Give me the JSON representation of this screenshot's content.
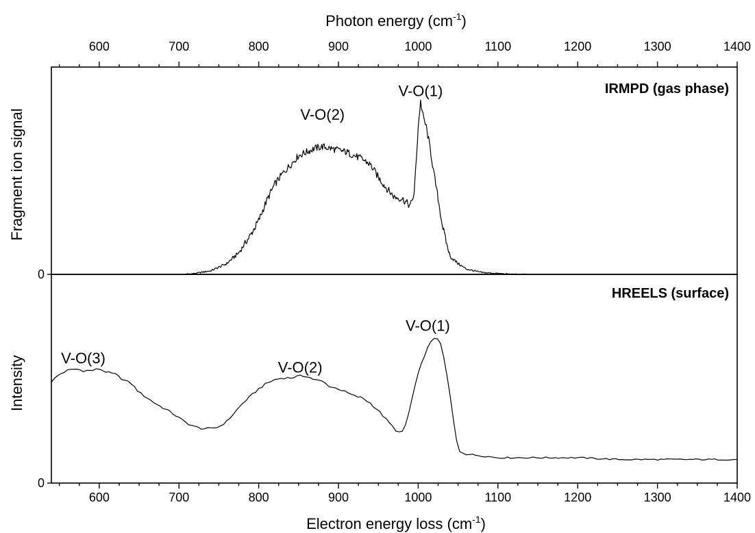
{
  "chart_data": [
    {
      "type": "line",
      "panel": "top",
      "title": "IRMPD (gas phase)",
      "xlabel": "Photon energy (cm-1)",
      "xlabel_base": "Photon energy (cm",
      "xlabel_sup": "-1",
      "xlabel_close": ")",
      "ylabel": "Fragment ion signal",
      "xlim": [
        540,
        1400
      ],
      "ylim": [
        0,
        1.0
      ],
      "x_ticks": [
        600,
        700,
        800,
        900,
        1000,
        1100,
        1200,
        1300,
        1400
      ],
      "y_tick_labels": [
        "0"
      ],
      "grid": false,
      "annotations": [
        {
          "text": "V-O(2)",
          "x": 880,
          "y": 0.86
        },
        {
          "text": "V-O(1)",
          "x": 1003,
          "y": 0.99
        }
      ],
      "series": [
        {
          "x": [
            705,
            720,
            740,
            760,
            775,
            790,
            800,
            810,
            820,
            830,
            840,
            850,
            860,
            870,
            880,
            890,
            900,
            910,
            920,
            930,
            940,
            950,
            960,
            970,
            980,
            990,
            995,
            1000,
            1003,
            1006,
            1010,
            1015,
            1020,
            1025,
            1030,
            1035,
            1040,
            1050,
            1060,
            1080,
            1100,
            1120,
            1135
          ],
          "y": [
            0.0,
            0.005,
            0.02,
            0.06,
            0.12,
            0.22,
            0.3,
            0.41,
            0.5,
            0.56,
            0.61,
            0.66,
            0.68,
            0.7,
            0.71,
            0.7,
            0.69,
            0.68,
            0.66,
            0.64,
            0.61,
            0.54,
            0.48,
            0.43,
            0.42,
            0.38,
            0.45,
            0.82,
            0.96,
            0.88,
            0.82,
            0.7,
            0.55,
            0.42,
            0.28,
            0.18,
            0.1,
            0.06,
            0.03,
            0.01,
            0.005,
            0.0,
            0.0
          ]
        }
      ]
    },
    {
      "type": "line",
      "panel": "bottom",
      "title": "HREELS (surface)",
      "xlabel": "Electron energy loss (cm-1)",
      "xlabel_base": "Electron energy loss (cm",
      "xlabel_sup": "-1",
      "xlabel_close": ")",
      "ylabel": "Intensity",
      "xlim": [
        540,
        1400
      ],
      "ylim": [
        0,
        1.0
      ],
      "x_ticks": [
        600,
        700,
        800,
        900,
        1000,
        1100,
        1200,
        1300,
        1400
      ],
      "y_tick_labels": [
        "0"
      ],
      "grid": false,
      "annotations": [
        {
          "text": "V-O(3)",
          "x": 580,
          "y": 0.66
        },
        {
          "text": "V-O(2)",
          "x": 852,
          "y": 0.61
        },
        {
          "text": "V-O(1)",
          "x": 1012,
          "y": 0.84
        }
      ],
      "series": [
        {
          "x": [
            540,
            550,
            560,
            570,
            580,
            590,
            600,
            610,
            620,
            630,
            640,
            650,
            670,
            690,
            700,
            710,
            720,
            730,
            740,
            750,
            760,
            770,
            780,
            790,
            800,
            810,
            820,
            830,
            840,
            850,
            860,
            870,
            880,
            890,
            900,
            910,
            920,
            930,
            940,
            950,
            960,
            970,
            975,
            980,
            985,
            990,
            995,
            1000,
            1005,
            1010,
            1015,
            1020,
            1025,
            1030,
            1035,
            1040,
            1045,
            1050,
            1060,
            1080,
            1100,
            1150,
            1200,
            1250,
            1300,
            1350,
            1400
          ],
          "y": [
            0.56,
            0.6,
            0.62,
            0.63,
            0.62,
            0.62,
            0.63,
            0.61,
            0.6,
            0.57,
            0.55,
            0.5,
            0.44,
            0.39,
            0.36,
            0.33,
            0.31,
            0.3,
            0.3,
            0.31,
            0.34,
            0.39,
            0.44,
            0.48,
            0.52,
            0.55,
            0.57,
            0.58,
            0.58,
            0.59,
            0.59,
            0.57,
            0.56,
            0.53,
            0.52,
            0.5,
            0.48,
            0.47,
            0.44,
            0.4,
            0.35,
            0.3,
            0.28,
            0.28,
            0.33,
            0.42,
            0.52,
            0.6,
            0.67,
            0.73,
            0.77,
            0.8,
            0.8,
            0.74,
            0.62,
            0.48,
            0.32,
            0.18,
            0.16,
            0.15,
            0.14,
            0.14,
            0.14,
            0.13,
            0.13,
            0.13,
            0.13
          ]
        }
      ]
    }
  ]
}
